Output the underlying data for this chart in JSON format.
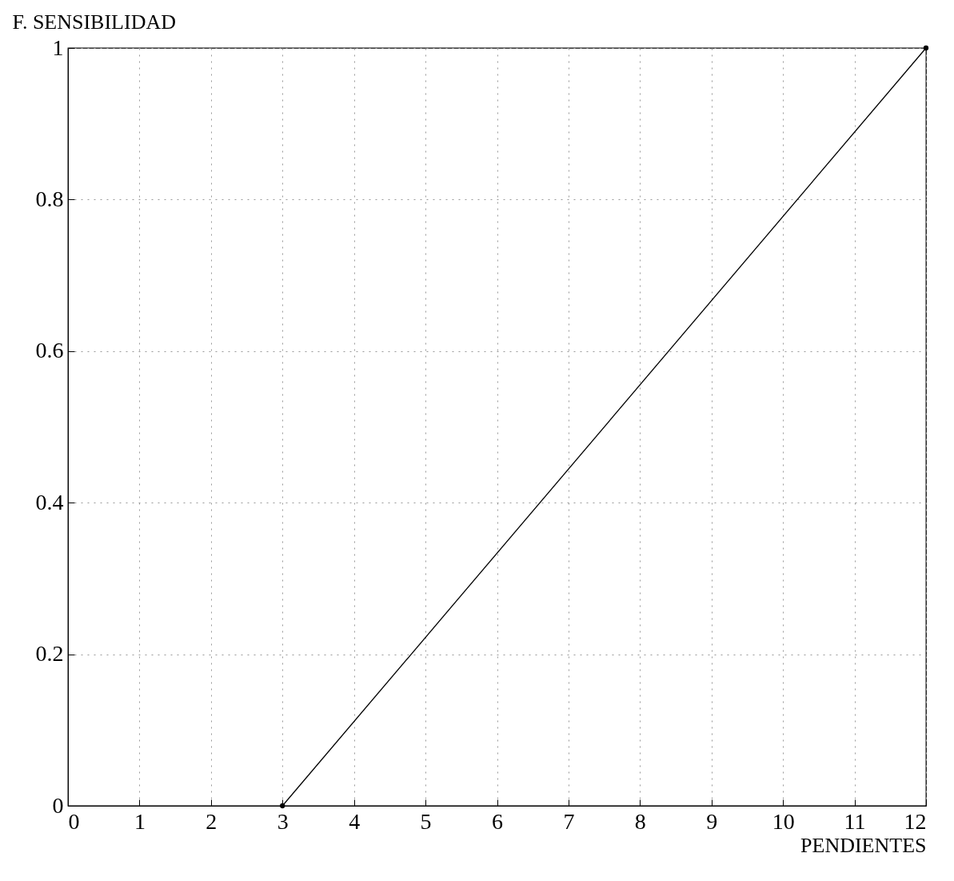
{
  "chart_data": {
    "type": "line",
    "ylabel": "F. SENSIBILIDAD",
    "xlabel": "PENDIENTES",
    "x": [
      3,
      12
    ],
    "series": [
      {
        "color": "#000000",
        "values": [
          0,
          1
        ]
      }
    ],
    "xlim": [
      0,
      12
    ],
    "xticks": [
      0,
      1,
      2,
      3,
      4,
      5,
      6,
      7,
      8,
      9,
      10,
      11,
      12
    ],
    "ylim": [
      0,
      1
    ],
    "yticks": [
      0,
      0.2,
      0.4,
      0.6,
      0.8,
      1
    ],
    "grid": true,
    "marker": "circle",
    "line_style": "solid"
  }
}
